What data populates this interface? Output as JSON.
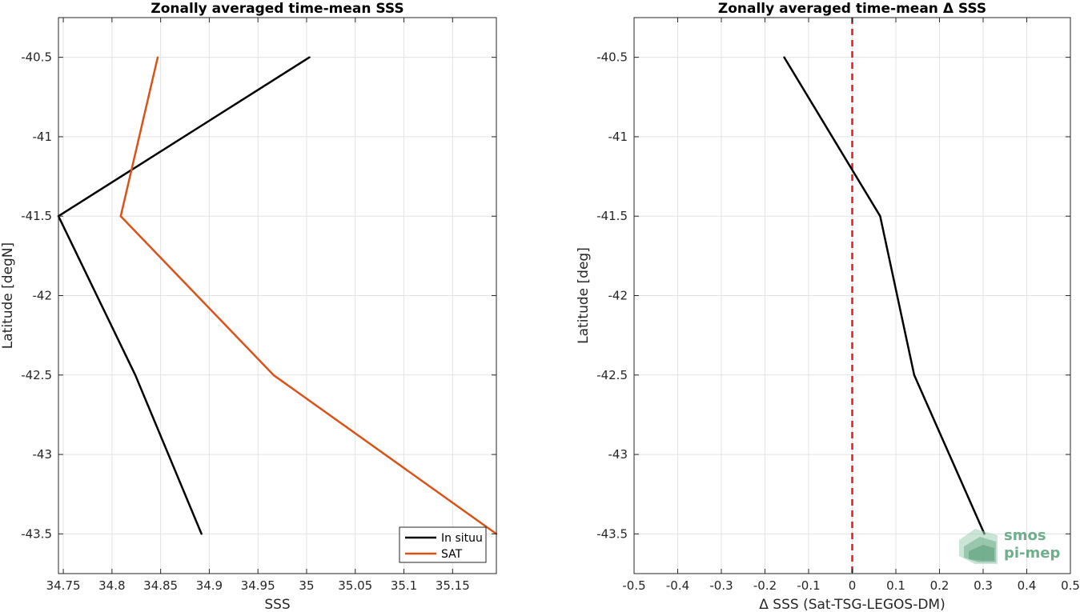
{
  "chart_data": [
    {
      "type": "line",
      "title": "Zonally averaged time-mean SSS",
      "xlabel": "SSS",
      "ylabel": "Latitude [degN]",
      "xlim": [
        34.745,
        35.195
      ],
      "ylim": [
        -43.75,
        -40.25
      ],
      "xticks": [
        34.75,
        34.8,
        34.85,
        34.9,
        34.95,
        35,
        35.05,
        35.1,
        35.15
      ],
      "xtick_labels": [
        "34.75",
        "34.8",
        "34.85",
        "34.9",
        "34.95",
        "35",
        "35.05",
        "35.1",
        "35.15"
      ],
      "yticks": [
        -40.5,
        -41,
        -41.5,
        -42,
        -42.5,
        -43,
        -43.5
      ],
      "ytick_labels": [
        "-40.5",
        "-41",
        "-41.5",
        "-42",
        "-42.5",
        "-43",
        "-43.5"
      ],
      "grid": true,
      "legend_position": "bottom-right",
      "series": [
        {
          "name": "In situu",
          "color": "#000000",
          "x": [
            35.003,
            34.745,
            34.824,
            34.892
          ],
          "y": [
            -40.5,
            -41.5,
            -42.5,
            -43.5
          ]
        },
        {
          "name": "SAT",
          "color": "#d95319",
          "x": [
            34.847,
            34.809,
            34.966,
            35.195
          ],
          "y": [
            -40.5,
            -41.5,
            -42.5,
            -43.5
          ]
        }
      ]
    },
    {
      "type": "line",
      "title": "Zonally averaged time-mean Δ SSS",
      "xlabel": "Δ SSS (Sat-TSG-LEGOS-DM)",
      "ylabel": "Latitude [deg]",
      "xlim": [
        -0.5,
        0.5
      ],
      "ylim": [
        -43.75,
        -40.25
      ],
      "xticks": [
        -0.5,
        -0.4,
        -0.3,
        -0.2,
        -0.1,
        0,
        0.1,
        0.2,
        0.3,
        0.4,
        0.5
      ],
      "xtick_labels": [
        "-0.5",
        "-0.4",
        "-0.3",
        "-0.2",
        "-0.1",
        "0",
        "0.1",
        "0.2",
        "0.3",
        "0.4",
        "0.5"
      ],
      "yticks": [
        -40.5,
        -41,
        -41.5,
        -42,
        -42.5,
        -43,
        -43.5
      ],
      "ytick_labels": [
        "-40.5",
        "-41",
        "-41.5",
        "-42",
        "-42.5",
        "-43",
        "-43.5"
      ],
      "grid": true,
      "reference_line": {
        "x": 0,
        "color": "#e41a1c",
        "style": "dashed"
      },
      "series": [
        {
          "name": "",
          "color": "#000000",
          "x": [
            -0.156,
            0.064,
            0.142,
            0.303
          ],
          "y": [
            -40.5,
            -41.5,
            -42.5,
            -43.5
          ]
        }
      ]
    }
  ],
  "logo": {
    "line1": "smos",
    "line2": "pi-mep",
    "color": "#6fae8c"
  }
}
